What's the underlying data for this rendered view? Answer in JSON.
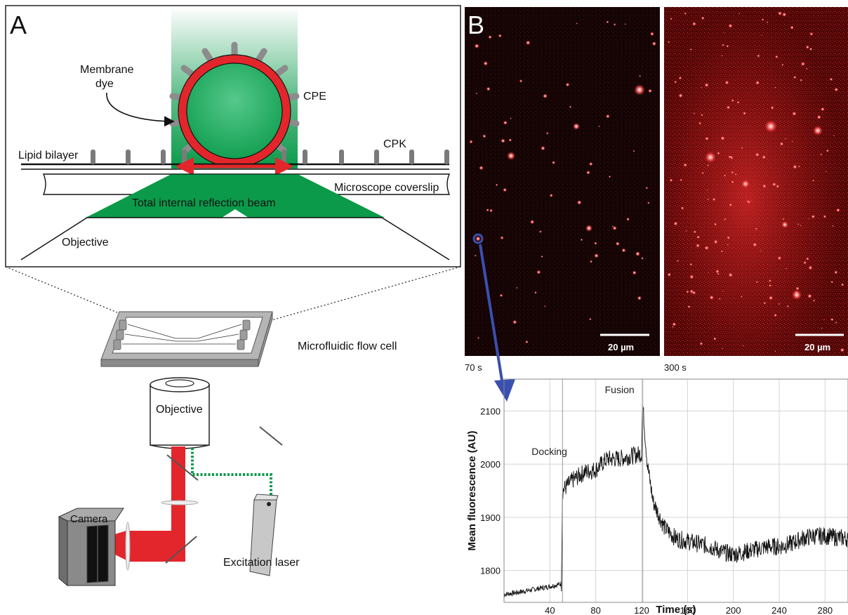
{
  "panel_a": {
    "letter": "A",
    "labels": {
      "membrane_dye_1": "Membrane",
      "membrane_dye_2": "dye",
      "cpe": "CPE",
      "cpk": "CPK",
      "lipid_bilayer": "Lipid bilayer",
      "coverslip": "Microscope coverslip",
      "tir_beam": "Total internal reflection beam",
      "objective_inset": "Objective"
    },
    "setup": {
      "flow_cell": "Microfluidic flow cell",
      "objective": "Objective",
      "camera": "Camera",
      "laser": "Excitation laser"
    },
    "colors": {
      "green": "#0a9a4a",
      "red": "#e3262b",
      "grey": "#8c8c8c"
    }
  },
  "panel_b": {
    "letter": "B",
    "image_left": {
      "time": "70 s",
      "scale_bar": "20 µm"
    },
    "image_right": {
      "time": "300 s",
      "scale_bar": "20 µm"
    },
    "colors": {
      "highlight": "#3a4fb0",
      "red": "#ff2a2a"
    }
  },
  "chart_data": {
    "type": "line",
    "xlabel": "Time (s)",
    "ylabel": "Mean fluorescence (AU)",
    "xlim": [
      0,
      300
    ],
    "ylim": [
      1740,
      2160
    ],
    "xticks": [
      40,
      80,
      120,
      160,
      200,
      240,
      280
    ],
    "yticks": [
      1800,
      1900,
      2000,
      2100
    ],
    "grid": true,
    "annotations": [
      {
        "text": "Docking",
        "x": 51
      },
      {
        "text": "Fusion",
        "x": 121
      }
    ],
    "series": [
      {
        "x": [
          0,
          10,
          20,
          30,
          40,
          50,
          51,
          60,
          70,
          80,
          90,
          100,
          110,
          120,
          121,
          125,
          130,
          140,
          150,
          160,
          170,
          180,
          190,
          200,
          210,
          220,
          230,
          240,
          250,
          260,
          270,
          280,
          290,
          300
        ],
        "values": [
          1755,
          1758,
          1762,
          1766,
          1770,
          1775,
          1950,
          1970,
          1985,
          1990,
          2010,
          2010,
          2015,
          2020,
          2110,
          2000,
          1930,
          1880,
          1860,
          1855,
          1850,
          1845,
          1835,
          1830,
          1835,
          1840,
          1845,
          1845,
          1850,
          1860,
          1865,
          1865,
          1862,
          1860
        ]
      }
    ]
  }
}
